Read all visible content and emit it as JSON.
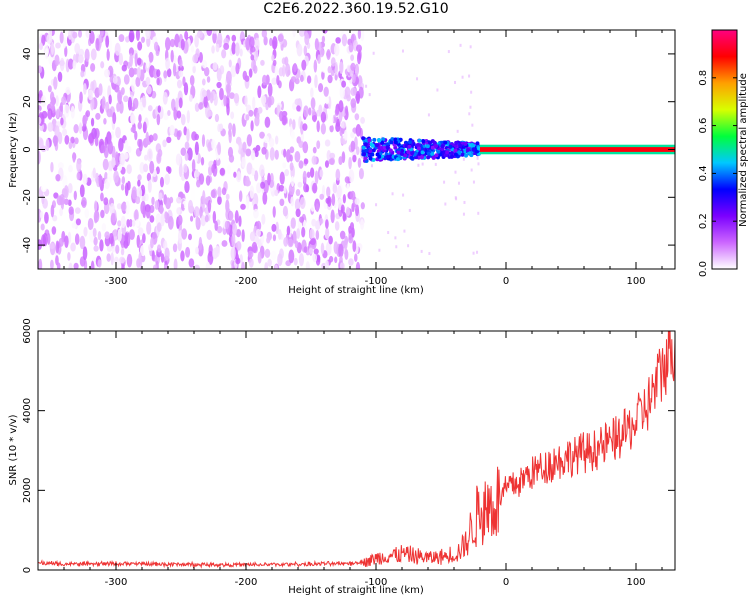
{
  "title": "C2E6.2022.360.19.52.G10",
  "chart_data": [
    {
      "type": "heatmap",
      "title": "C2E6.2022.360.19.52.G10",
      "xlabel": "Height of straight line (km)",
      "ylabel": "Frequency (Hz)",
      "xlim": [
        -360,
        130
      ],
      "ylim": [
        -50,
        50
      ],
      "x_ticks": [
        -300,
        -200,
        -100,
        0,
        100
      ],
      "y_ticks": [
        -40,
        -20,
        0,
        20,
        40
      ],
      "grid": false,
      "colorbar": {
        "label": "Normalized spectral amplitude",
        "range": [
          0,
          1
        ],
        "ticks": [
          0.0,
          0.2,
          0.4,
          0.6,
          0.8
        ],
        "colormap": [
          "#ffffff",
          "#cc66ff",
          "#7b00ff",
          "#0000ff",
          "#00c8ff",
          "#00ff3c",
          "#d8ff00",
          "#ffa000",
          "#ff0000",
          "#ff0080"
        ]
      },
      "regions": [
        {
          "x_range": [
            -360,
            -110
          ],
          "y_range": [
            -50,
            50
          ],
          "amplitude": [
            0.0,
            0.12
          ],
          "description_level": "noise"
        },
        {
          "x_range": [
            -110,
            -20
          ],
          "y_center": 0,
          "y_halfwidth": 5,
          "amplitude": [
            0.2,
            0.45
          ]
        },
        {
          "x_range": [
            -20,
            130
          ],
          "y_center": 0,
          "y_halfwidth": 1,
          "amplitude": [
            0.9,
            1.0
          ]
        }
      ]
    },
    {
      "type": "line",
      "xlabel": "Height of straight line (km)",
      "ylabel": "SNR (10 * v/v)",
      "xlim": [
        -360,
        130
      ],
      "ylim": [
        0,
        6000
      ],
      "x_ticks": [
        -300,
        -200,
        -100,
        0,
        100
      ],
      "y_ticks": [
        0,
        2000,
        4000,
        6000
      ],
      "grid": false,
      "series": [
        {
          "color": "#ee3333",
          "x": [
            -360,
            -340,
            -300,
            -250,
            -200,
            -150,
            -120,
            -110,
            -100,
            -90,
            -80,
            -70,
            -60,
            -50,
            -40,
            -35,
            -30,
            -25,
            -20,
            -15,
            -10,
            -5,
            0,
            10,
            20,
            30,
            40,
            50,
            60,
            70,
            80,
            90,
            100,
            110,
            120,
            130
          ],
          "y": [
            180,
            150,
            160,
            140,
            130,
            150,
            170,
            200,
            280,
            350,
            400,
            350,
            300,
            320,
            400,
            500,
            700,
            1200,
            1500,
            1550,
            1650,
            1800,
            2050,
            2200,
            2450,
            2600,
            2750,
            2850,
            2950,
            3050,
            3200,
            3400,
            3700,
            4200,
            5000,
            5800
          ]
        }
      ]
    }
  ]
}
